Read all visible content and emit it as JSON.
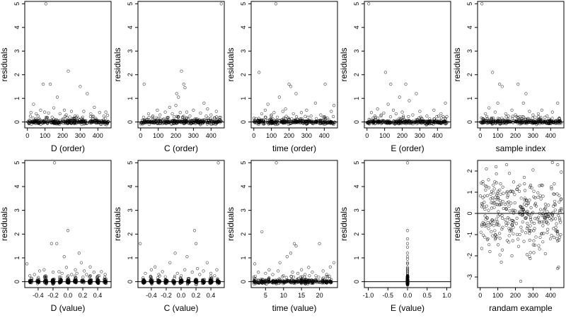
{
  "chart_data": [
    {
      "type": "scatter",
      "xlabel": "D (order)",
      "ylabel": "residuals",
      "xlim": [
        -15,
        475
      ],
      "ylim": [
        -0.25,
        5.1
      ],
      "xticks": [
        0,
        100,
        200,
        300,
        400
      ],
      "yticks": [
        0,
        1,
        2,
        3,
        4,
        5
      ],
      "hline": 0,
      "seed": 11,
      "noise_sd": 0.04,
      "points": [
        [
          20,
          0.4
        ],
        [
          35,
          0.75
        ],
        [
          50,
          0.35
        ],
        [
          60,
          0.25
        ],
        [
          75,
          0.5
        ],
        [
          90,
          1.6
        ],
        [
          98,
          0.42
        ],
        [
          105,
          5.0
        ],
        [
          120,
          0.38
        ],
        [
          130,
          1.6
        ],
        [
          150,
          0.6
        ],
        [
          170,
          1.05
        ],
        [
          185,
          0.35
        ],
        [
          210,
          0.5
        ],
        [
          220,
          0.3
        ],
        [
          232,
          2.15
        ],
        [
          250,
          0.45
        ],
        [
          270,
          0.25
        ],
        [
          300,
          1.5
        ],
        [
          320,
          0.45
        ],
        [
          340,
          1.2
        ],
        [
          360,
          0.35
        ],
        [
          380,
          0.62
        ],
        [
          410,
          0.4
        ],
        [
          445,
          0.42
        ],
        [
          455,
          0.28
        ]
      ]
    },
    {
      "type": "scatter",
      "xlabel": "C (order)",
      "ylabel": "residuals",
      "xlim": [
        -15,
        475
      ],
      "ylim": [
        -0.25,
        5.1
      ],
      "xticks": [
        0,
        100,
        200,
        300,
        400
      ],
      "yticks": [
        0,
        1,
        2,
        3,
        4,
        5
      ],
      "hline": 0,
      "seed": 12,
      "noise_sd": 0.04,
      "points": [
        [
          20,
          1.6
        ],
        [
          45,
          0.35
        ],
        [
          70,
          0.25
        ],
        [
          95,
          0.5
        ],
        [
          110,
          0.3
        ],
        [
          140,
          0.42
        ],
        [
          165,
          0.62
        ],
        [
          180,
          0.35
        ],
        [
          200,
          0.7
        ],
        [
          205,
          1.2
        ],
        [
          215,
          1.05
        ],
        [
          225,
          0.4
        ],
        [
          232,
          2.15
        ],
        [
          245,
          1.6
        ],
        [
          252,
          1.45
        ],
        [
          262,
          0.42
        ],
        [
          280,
          0.25
        ],
        [
          300,
          0.5
        ],
        [
          340,
          0.38
        ],
        [
          360,
          0.8
        ],
        [
          380,
          0.55
        ],
        [
          400,
          0.3
        ],
        [
          430,
          0.45
        ],
        [
          458,
          5.0
        ]
      ]
    },
    {
      "type": "scatter",
      "xlabel": "time (order)",
      "ylabel": "residuals",
      "xlim": [
        -15,
        475
      ],
      "ylim": [
        -0.25,
        5.1
      ],
      "xticks": [
        0,
        100,
        200,
        300,
        400
      ],
      "yticks": [
        0,
        1,
        2,
        3,
        4,
        5
      ],
      "hline": 0,
      "seed": 13,
      "noise_sd": 0.04,
      "points": [
        [
          30,
          2.1
        ],
        [
          45,
          0.35
        ],
        [
          65,
          0.5
        ],
        [
          80,
          0.75
        ],
        [
          100,
          0.3
        ],
        [
          115,
          0.4
        ],
        [
          125,
          5.0
        ],
        [
          145,
          1.05
        ],
        [
          165,
          0.45
        ],
        [
          180,
          0.55
        ],
        [
          200,
          1.6
        ],
        [
          210,
          1.5
        ],
        [
          225,
          0.35
        ],
        [
          240,
          1.2
        ],
        [
          270,
          0.4
        ],
        [
          300,
          0.5
        ],
        [
          325,
          0.25
        ],
        [
          350,
          0.8
        ],
        [
          380,
          0.3
        ],
        [
          405,
          1.6
        ],
        [
          440,
          0.45
        ],
        [
          455,
          0.7
        ]
      ]
    },
    {
      "type": "scatter",
      "xlabel": "E (order)",
      "ylabel": "residuals",
      "xlim": [
        -15,
        475
      ],
      "ylim": [
        -0.25,
        5.1
      ],
      "xticks": [
        0,
        100,
        200,
        300,
        400
      ],
      "yticks": [
        0,
        1,
        2,
        3,
        4,
        5
      ],
      "hline": 0,
      "seed": 14,
      "noise_sd": 0.04,
      "points": [
        [
          10,
          5.0
        ],
        [
          25,
          0.4
        ],
        [
          45,
          0.25
        ],
        [
          60,
          0.55
        ],
        [
          80,
          0.3
        ],
        [
          95,
          0.38
        ],
        [
          105,
          2.1
        ],
        [
          120,
          0.75
        ],
        [
          135,
          1.6
        ],
        [
          150,
          0.5
        ],
        [
          165,
          0.35
        ],
        [
          185,
          1.05
        ],
        [
          200,
          0.42
        ],
        [
          220,
          1.6
        ],
        [
          240,
          0.9
        ],
        [
          260,
          0.3
        ],
        [
          280,
          1.2
        ],
        [
          300,
          0.45
        ],
        [
          340,
          0.25
        ],
        [
          380,
          0.5
        ],
        [
          420,
          0.35
        ],
        [
          445,
          0.8
        ]
      ]
    },
    {
      "type": "scatter",
      "xlabel": "sample index",
      "ylabel": "residuals",
      "xlim": [
        -15,
        475
      ],
      "ylim": [
        -0.25,
        5.1
      ],
      "xticks": [
        0,
        100,
        200,
        300,
        400
      ],
      "yticks": [
        0,
        1,
        2,
        3,
        4,
        5
      ],
      "hline": 0,
      "seed": 15,
      "noise_sd": 0.04,
      "points": [
        [
          10,
          5.0
        ],
        [
          30,
          0.35
        ],
        [
          50,
          0.6
        ],
        [
          70,
          2.1
        ],
        [
          85,
          0.42
        ],
        [
          100,
          0.8
        ],
        [
          110,
          1.6
        ],
        [
          125,
          1.5
        ],
        [
          145,
          0.35
        ],
        [
          160,
          0.25
        ],
        [
          180,
          0.5
        ],
        [
          200,
          0.3
        ],
        [
          215,
          1.6
        ],
        [
          245,
          0.8
        ],
        [
          260,
          1.2
        ],
        [
          280,
          0.45
        ],
        [
          300,
          0.3
        ],
        [
          330,
          0.35
        ],
        [
          350,
          0.5
        ],
        [
          380,
          0.25
        ],
        [
          410,
          0.42
        ],
        [
          440,
          0.8
        ]
      ]
    },
    {
      "type": "scatter",
      "xlabel": "D (value)",
      "ylabel": "residuals",
      "xlim": [
        -0.58,
        0.58
      ],
      "ylim": [
        -0.25,
        5.1
      ],
      "xticks": [
        -0.4,
        -0.2,
        0.0,
        0.2,
        0.4
      ],
      "xtick_labels": [
        "-0.4",
        "-0.2",
        "0.0",
        "0.2",
        "0.4"
      ],
      "yticks": [
        0,
        1,
        2,
        3,
        4,
        5
      ],
      "hline": 0,
      "seed": 16,
      "noise_sd": 0.04,
      "points": [
        [
          -0.55,
          0.75
        ],
        [
          -0.45,
          0.3
        ],
        [
          -0.38,
          0.45
        ],
        [
          -0.32,
          0.5
        ],
        [
          -0.3,
          0.25
        ],
        [
          -0.22,
          1.6
        ],
        [
          -0.2,
          0.4
        ],
        [
          -0.18,
          5.0
        ],
        [
          -0.15,
          1.6
        ],
        [
          -0.12,
          0.42
        ],
        [
          -0.08,
          0.35
        ],
        [
          -0.05,
          1.05
        ],
        [
          -0.02,
          0.6
        ],
        [
          0.0,
          2.15
        ],
        [
          0.05,
          0.3
        ],
        [
          0.1,
          0.5
        ],
        [
          0.12,
          0.35
        ],
        [
          0.15,
          1.2
        ],
        [
          0.18,
          0.8
        ],
        [
          0.22,
          0.45
        ],
        [
          0.25,
          0.3
        ],
        [
          0.3,
          0.62
        ],
        [
          0.35,
          0.4
        ],
        [
          0.42,
          0.25
        ],
        [
          0.45,
          0.42
        ],
        [
          0.5,
          0.3
        ]
      ]
    },
    {
      "type": "scatter",
      "xlabel": "C (value)",
      "ylabel": "residuals",
      "xlim": [
        -0.58,
        0.58
      ],
      "ylim": [
        -0.25,
        5.1
      ],
      "xticks": [
        -0.4,
        -0.2,
        0.0,
        0.2,
        0.4
      ],
      "xtick_labels": [
        "-0.4",
        "-0.2",
        "0.0",
        "0.2",
        "0.4"
      ],
      "yticks": [
        0,
        1,
        2,
        3,
        4,
        5
      ],
      "hline": 0,
      "seed": 17,
      "noise_sd": 0.04,
      "points": [
        [
          -0.55,
          1.6
        ],
        [
          -0.48,
          0.35
        ],
        [
          -0.4,
          0.5
        ],
        [
          -0.35,
          0.62
        ],
        [
          -0.3,
          0.3
        ],
        [
          -0.25,
          0.42
        ],
        [
          -0.15,
          0.8
        ],
        [
          -0.08,
          1.2
        ],
        [
          -0.05,
          0.35
        ],
        [
          0.0,
          0.25
        ],
        [
          0.05,
          0.5
        ],
        [
          0.08,
          1.05
        ],
        [
          0.15,
          0.4
        ],
        [
          0.18,
          2.15
        ],
        [
          0.2,
          1.6
        ],
        [
          0.22,
          0.55
        ],
        [
          0.25,
          0.3
        ],
        [
          0.3,
          0.45
        ],
        [
          0.35,
          0.8
        ],
        [
          0.4,
          0.35
        ],
        [
          0.45,
          0.25
        ],
        [
          0.48,
          0.5
        ],
        [
          0.5,
          5.0
        ]
      ]
    },
    {
      "type": "scatter",
      "xlabel": "time (value)",
      "ylabel": "residuals",
      "xlim": [
        1,
        25
      ],
      "ylim": [
        -0.25,
        5.1
      ],
      "xticks": [
        5,
        10,
        15,
        20
      ],
      "yticks": [
        0,
        1,
        2,
        3,
        4,
        5
      ],
      "hline": 0,
      "seed": 18,
      "noise_sd": 0.04,
      "points": [
        [
          2,
          0.75
        ],
        [
          3,
          0.4
        ],
        [
          4,
          2.1
        ],
        [
          5,
          0.35
        ],
        [
          6,
          0.5
        ],
        [
          7,
          0.3
        ],
        [
          8,
          5.0
        ],
        [
          8.5,
          0.45
        ],
        [
          9,
          0.8
        ],
        [
          10,
          0.25
        ],
        [
          11,
          1.05
        ],
        [
          12,
          1.2
        ],
        [
          12.5,
          0.4
        ],
        [
          13,
          1.6
        ],
        [
          13.5,
          1.5
        ],
        [
          14,
          0.35
        ],
        [
          15,
          0.5
        ],
        [
          16,
          0.3
        ],
        [
          17,
          0.6
        ],
        [
          18,
          0.4
        ],
        [
          19,
          0.25
        ],
        [
          20,
          1.6
        ],
        [
          21,
          0.45
        ],
        [
          22,
          0.3
        ],
        [
          23,
          0.62
        ],
        [
          24,
          0.8
        ]
      ]
    },
    {
      "type": "scatter",
      "xlabel": "E (value)",
      "ylabel": "residuals",
      "xlim": [
        -1.1,
        1.1
      ],
      "ylim": [
        -0.25,
        5.1
      ],
      "xticks": [
        -1.0,
        -0.5,
        0.0,
        0.5,
        1.0
      ],
      "xtick_labels": [
        "-1.0",
        "-0.5",
        "0.0",
        "0.5",
        "1.0"
      ],
      "yticks": [
        0,
        1,
        2,
        3,
        4,
        5
      ],
      "hline": 0,
      "seed": 19,
      "noise_sd": 0.05,
      "points": [
        [
          0,
          5.0
        ],
        [
          0,
          2.15
        ],
        [
          0,
          1.8
        ],
        [
          0,
          1.6
        ],
        [
          0,
          1.45
        ],
        [
          0,
          1.2
        ],
        [
          0,
          1.05
        ],
        [
          0,
          0.95
        ],
        [
          0,
          0.8
        ],
        [
          0,
          0.75
        ],
        [
          0,
          0.6
        ],
        [
          0,
          0.55
        ],
        [
          0,
          0.5
        ],
        [
          0,
          0.45
        ],
        [
          0,
          0.4
        ],
        [
          0,
          0.35
        ],
        [
          0,
          0.3
        ],
        [
          0,
          0.25
        ],
        [
          0,
          0.2
        ],
        [
          0,
          0.15
        ],
        [
          0,
          0.1
        ],
        [
          0,
          0.05
        ],
        [
          0,
          0.0
        ],
        [
          0,
          -0.05
        ]
      ]
    },
    {
      "type": "scatter",
      "xlabel": "randam example",
      "ylabel": "residuals",
      "xlim": [
        -15,
        475
      ],
      "ylim": [
        -3.5,
        2.5
      ],
      "xticks": [
        0,
        100,
        200,
        300,
        400
      ],
      "yticks": [
        -3,
        -2,
        -1,
        0,
        1,
        2
      ],
      "hline": 0,
      "seed": 20,
      "noise_sd": 0.9,
      "points": [
        [
          230,
          -3.2
        ],
        [
          35,
          2.1
        ],
        [
          90,
          2.2
        ],
        [
          150,
          2.3
        ],
        [
          300,
          2.05
        ],
        [
          410,
          2.4
        ],
        [
          440,
          2.3
        ],
        [
          460,
          1.95
        ],
        [
          55,
          -1.8
        ],
        [
          180,
          -2.0
        ],
        [
          285,
          -1.85
        ],
        [
          370,
          -1.9
        ],
        [
          120,
          -2.3
        ],
        [
          440,
          -2.6
        ],
        [
          15,
          1.5
        ],
        [
          250,
          1.7
        ]
      ]
    }
  ],
  "style": {
    "point_color": "#000000",
    "axis_color": "#000000"
  }
}
